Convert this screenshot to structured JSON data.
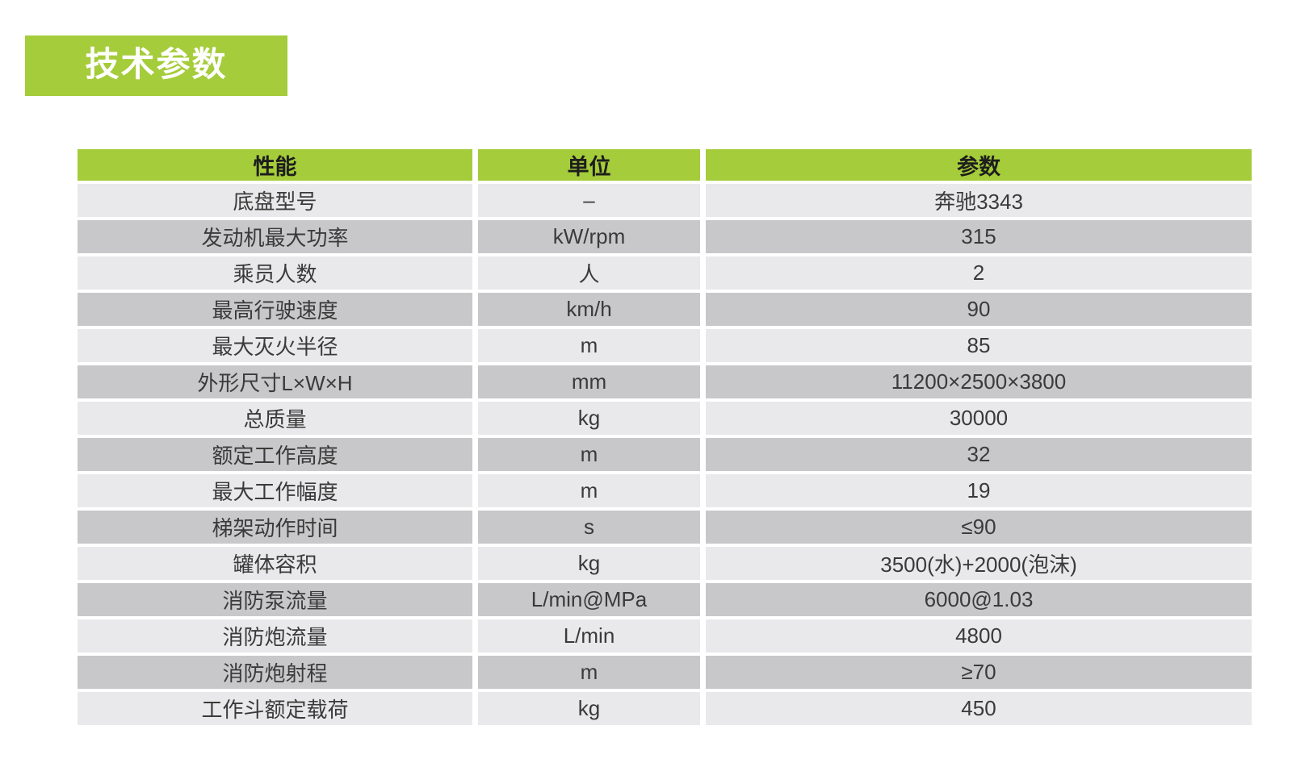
{
  "section": {
    "title": "技术参数"
  },
  "colors": {
    "accent_green": "#a5cc3a",
    "row_light": "#e9e9eb",
    "row_dark": "#c8c8ca",
    "title_text": "#ffffff",
    "header_text": "#1d1d1d",
    "body_text": "#3a3a3a"
  },
  "table": {
    "headers": [
      "性能",
      "单位",
      "参数"
    ],
    "rows": [
      [
        "底盘型号",
        "–",
        "奔驰3343"
      ],
      [
        "发动机最大功率",
        "kW/rpm",
        "315"
      ],
      [
        "乘员人数",
        "人",
        "2"
      ],
      [
        "最高行驶速度",
        "km/h",
        "90"
      ],
      [
        "最大灭火半径",
        "m",
        "85"
      ],
      [
        "外形尺寸L×W×H",
        "mm",
        "11200×2500×3800"
      ],
      [
        "总质量",
        "kg",
        "30000"
      ],
      [
        "额定工作高度",
        "m",
        "32"
      ],
      [
        "最大工作幅度",
        "m",
        "19"
      ],
      [
        "梯架动作时间",
        "s",
        "≤90"
      ],
      [
        "罐体容积",
        "kg",
        "3500(水)+2000(泡沫)"
      ],
      [
        "消防泵流量",
        "L/min@MPa",
        "6000@1.03"
      ],
      [
        "消防炮流量",
        "L/min",
        "4800"
      ],
      [
        "消防炮射程",
        "m",
        "≥70"
      ],
      [
        "工作斗额定载荷",
        "kg",
        "450"
      ]
    ]
  }
}
